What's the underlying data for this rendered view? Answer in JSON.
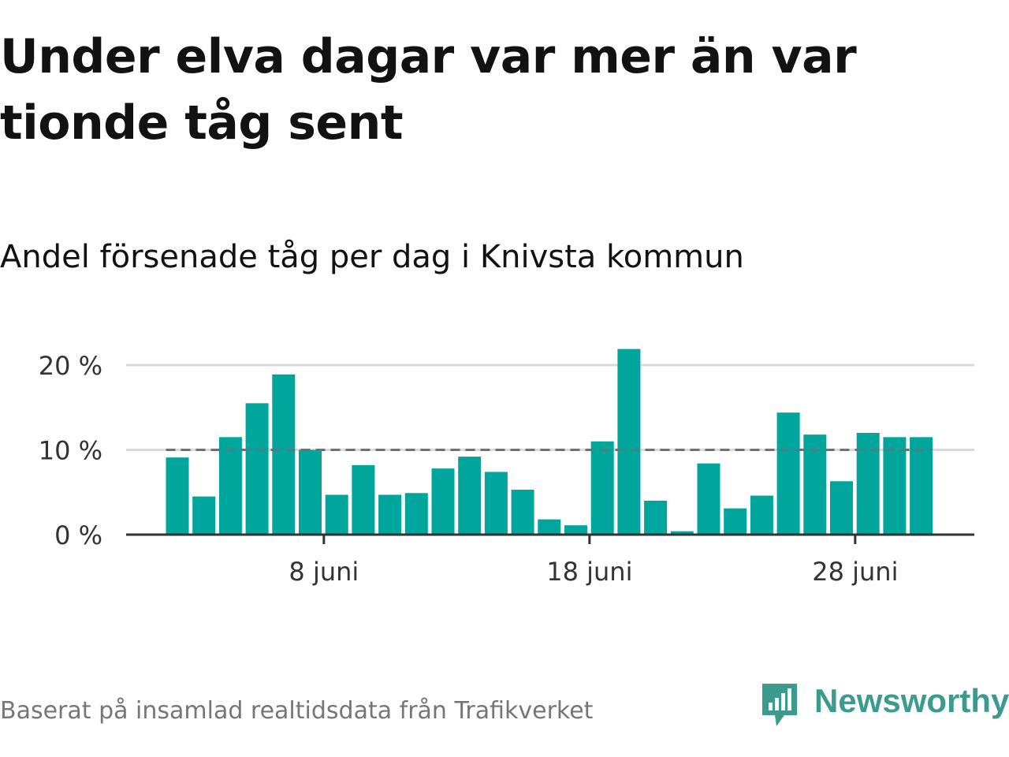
{
  "title": "Under elva dagar var mer än var tionde tåg sent",
  "subtitle": "Andel försenade tåg per dag i Knivsta kommun",
  "source": "Baserat på insamlad realtidsdata från Trafikverket",
  "brand": {
    "name": "Newsworthy",
    "color": "#3c9b8d"
  },
  "colors": {
    "bar": "#00a59c",
    "reference_line": "#707070",
    "grid": "#d9d9d9",
    "axis": "#333333"
  },
  "chart_data": {
    "type": "bar",
    "x_unit": "day of June",
    "x": [
      2,
      3,
      4,
      5,
      6,
      7,
      8,
      9,
      10,
      11,
      12,
      13,
      14,
      15,
      16,
      17,
      18,
      19,
      20,
      21,
      22,
      23,
      24,
      25,
      26,
      27,
      28,
      29,
      30
    ],
    "values": [
      9.1,
      4.5,
      11.5,
      15.5,
      18.9,
      10.0,
      4.7,
      8.2,
      4.7,
      4.9,
      7.8,
      9.2,
      7.4,
      5.3,
      1.8,
      1.1,
      11.0,
      21.9,
      4.0,
      0.4,
      8.4,
      3.1,
      4.6,
      14.4,
      11.8,
      6.3,
      12.0,
      11.5,
      11.5
    ],
    "y_unit": "%",
    "ylim": [
      0,
      22
    ],
    "y_ticks": [
      0,
      10,
      20
    ],
    "y_tick_labels": [
      "0 %",
      "10 %",
      "20 %"
    ],
    "x_ticks": [
      8,
      18,
      28
    ],
    "x_tick_labels": [
      "8 juni",
      "18 juni",
      "28 juni"
    ],
    "reference_line": {
      "value": 10,
      "style": "dashed"
    },
    "grid": true,
    "legend": "none"
  }
}
